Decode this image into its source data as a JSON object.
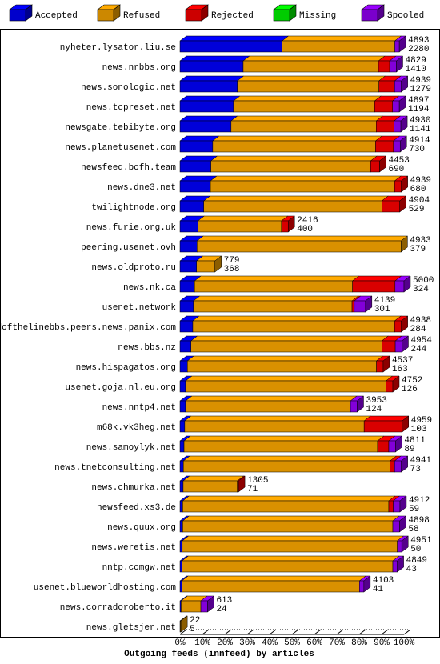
{
  "chart_data": {
    "type": "stacked-bar-3d",
    "orientation": "horizontal",
    "title": "Outgoing feeds (innfeed) by articles",
    "categories": [
      "nyheter.lysator.liu.se",
      "news.nrbbs.org",
      "news.sonologic.net",
      "news.tcpreset.net",
      "newsgate.tebibyte.org",
      "news.planetusenet.com",
      "newsfeed.bofh.team",
      "news.dne3.net",
      "twilightnode.org",
      "news.furie.org.uk",
      "peering.usenet.ovh",
      "news.oldproto.ru",
      "news.nk.ca",
      "usenet.network",
      "endofthelinebbs.peers.news.panix.com",
      "news.bbs.nz",
      "news.hispagatos.org",
      "usenet.goja.nl.eu.org",
      "news.nntp4.net",
      "m68k.vk3heg.net",
      "news.samoylyk.net",
      "news.tnetconsulting.net",
      "news.chmurka.net",
      "newsfeed.xs3.de",
      "news.quux.org",
      "news.weretis.net",
      "nntp.comgw.net",
      "usenet.blueworldhosting.com",
      "news.corradoroberto.it",
      "news.gletsjer.net"
    ],
    "offered": [
      4893,
      4829,
      4939,
      4897,
      4930,
      4914,
      4453,
      4939,
      4904,
      2416,
      4933,
      779,
      5000,
      4139,
      4938,
      4954,
      4537,
      4752,
      3953,
      4959,
      4811,
      4941,
      1305,
      4912,
      4898,
      4951,
      4849,
      4103,
      613,
      22
    ],
    "accepted_articles": [
      2280,
      1410,
      1279,
      1194,
      1141,
      730,
      690,
      680,
      529,
      400,
      379,
      368,
      324,
      301,
      284,
      244,
      163,
      126,
      124,
      103,
      89,
      73,
      71,
      59,
      58,
      50,
      43,
      41,
      24,
      5
    ],
    "series": [
      {
        "name": "Accepted",
        "color": "#0000ff",
        "values": [
          45.6,
          28.2,
          25.6,
          23.9,
          22.8,
          14.6,
          13.8,
          13.6,
          10.6,
          8.0,
          7.6,
          7.4,
          6.5,
          6.0,
          5.7,
          4.9,
          3.3,
          2.5,
          2.5,
          2.1,
          1.8,
          1.5,
          1.4,
          1.2,
          1.2,
          1.0,
          0.9,
          0.8,
          0.5,
          0.1
        ]
      },
      {
        "name": "Refused",
        "color": "#ffaa00",
        "values": [
          50.3,
          60.4,
          63.2,
          63.0,
          64.8,
          72.7,
          71.3,
          82.2,
          79.5,
          37.3,
          91.1,
          8.2,
          70.5,
          70.8,
          90.1,
          85.2,
          84.4,
          89.5,
          73.6,
          80.1,
          86.4,
          92.3,
          24.2,
          92.0,
          93.8,
          96.0,
          94.1,
          79.3,
          8.8,
          0.3
        ]
      },
      {
        "name": "Rejected",
        "color": "#ff0000",
        "values": [
          0,
          5,
          7,
          8,
          8,
          8,
          4,
          3,
          8,
          3,
          0,
          0,
          19,
          1,
          3,
          6,
          3,
          3,
          0,
          17,
          5,
          2,
          0.5,
          2,
          0,
          0,
          0,
          0,
          0,
          0
        ]
      },
      {
        "name": "Missing",
        "color": "#00ff00",
        "values": [
          0,
          0,
          0,
          0,
          0,
          0,
          0,
          0,
          0,
          0,
          0,
          0,
          0,
          0,
          0,
          0,
          0,
          0,
          0,
          0,
          0,
          0,
          0,
          0,
          0,
          0,
          0,
          0,
          0,
          0
        ]
      },
      {
        "name": "Spooled",
        "color": "#9900ff",
        "values": [
          2,
          3,
          3,
          3,
          3,
          3,
          0,
          0,
          0,
          0,
          0,
          0,
          4,
          5,
          0,
          3,
          0,
          0,
          3,
          0,
          3,
          3,
          0,
          3,
          3,
          2,
          2,
          2,
          3,
          0
        ]
      }
    ],
    "xlim": [
      0,
      100
    ],
    "xticks": [
      {
        "value": 0,
        "label": "0%"
      },
      {
        "value": 10,
        "label": "10%"
      },
      {
        "value": 20,
        "label": "20%"
      },
      {
        "value": 30,
        "label": "30%"
      },
      {
        "value": 40,
        "label": "40%"
      },
      {
        "value": 50,
        "label": "50%"
      },
      {
        "value": 60,
        "label": "60%"
      },
      {
        "value": 70,
        "label": "70%"
      },
      {
        "value": 80,
        "label": "80%"
      },
      {
        "value": 90,
        "label": "90%"
      },
      {
        "value": 100,
        "label": "100%"
      }
    ]
  }
}
